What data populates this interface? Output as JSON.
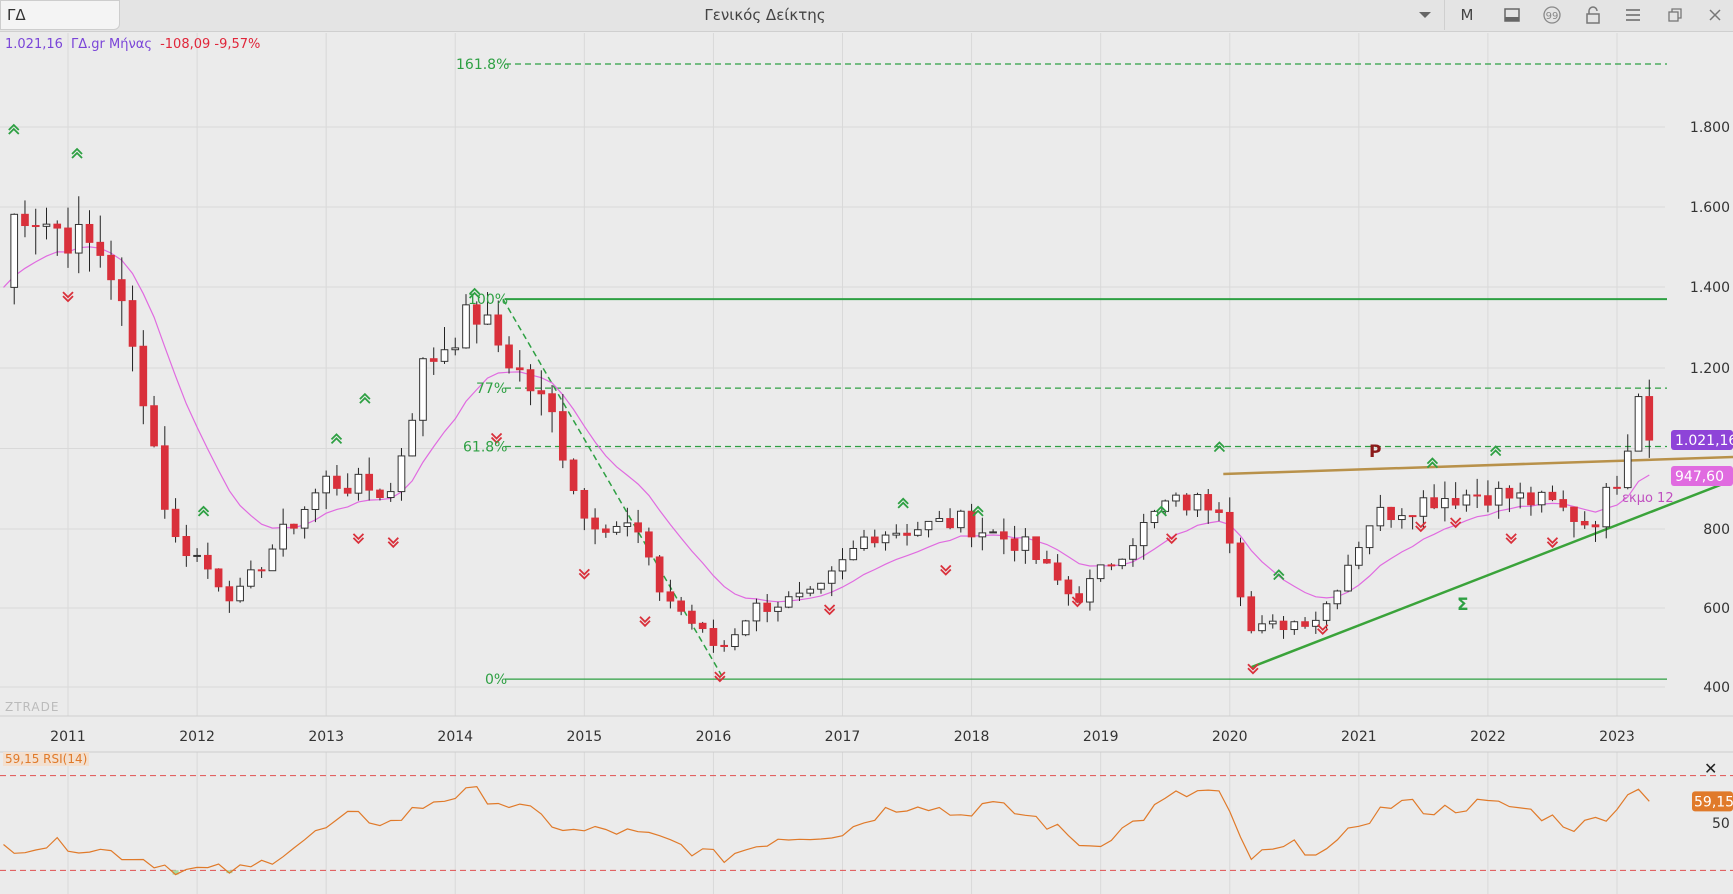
{
  "window": {
    "symbol": "ΓΔ",
    "title": "Γενικός Δείκτης",
    "period_button": "M",
    "icons": [
      "chevron-down-icon",
      "panel-icon",
      "quote-icon",
      "lock-icon",
      "menu-icon",
      "restore-icon",
      "close-icon"
    ]
  },
  "quote": {
    "price": "1.021,16",
    "name": "ΓΔ.gr Μήνας",
    "change": "-108,09",
    "change_pct": "-9,57%"
  },
  "watermark": "ZTRADE",
  "colors": {
    "bull": "#ffffff",
    "bear": "#d9303b",
    "ema": "#e06be0",
    "fib": "#2ea043",
    "resistance": "#b8914a",
    "rsi": "#e07a2a",
    "price_tag": "#8e44d8"
  },
  "price_tags": {
    "last": "1.021,16",
    "ema": "947,60"
  },
  "annotations": {
    "fib_161": "161.8%",
    "fib_100": "100%",
    "fib_77": "77%",
    "fib_618": "61.8%",
    "fib_0": "0%",
    "pattern_p": "P",
    "pattern_sigma": "Σ",
    "ema_label": "εκμο 12"
  },
  "rsi": {
    "label": "59,15 RSI(14)",
    "value_tag": "59,15",
    "level_label": "50"
  },
  "chart_data": {
    "type": "candlestick",
    "title": "",
    "x_range": [
      2010.5,
      2023.75
    ],
    "ylim": [
      400,
      1900
    ],
    "y_ticks": [
      400,
      600,
      800,
      1200,
      1400,
      1600,
      1800
    ],
    "y_tick_labels": [
      "400",
      "600",
      "800",
      "1.200",
      "1.400",
      "1.600",
      "1.800"
    ],
    "x_ticks": [
      "2011",
      "2012",
      "2013",
      "2014",
      "2015",
      "2016",
      "2017",
      "2018",
      "2019",
      "2020",
      "2021",
      "2022",
      "2023"
    ],
    "grid": true,
    "indicators": [
      "EMA 12",
      "RSI(14)"
    ],
    "fib_levels": [
      {
        "label": "161.8%",
        "value": 1950
      },
      {
        "label": "100%",
        "value": 1370
      },
      {
        "label": "77%",
        "value": 1150
      },
      {
        "label": "61.8%",
        "value": 1005
      },
      {
        "label": "0%",
        "value": 420
      }
    ],
    "anchors": [
      [
        2010.5,
        1400
      ],
      [
        2010.6,
        1610
      ],
      [
        2011.0,
        1530
      ],
      [
        2011.3,
        1480
      ],
      [
        2011.6,
        1120
      ],
      [
        2011.8,
        780
      ],
      [
        2012.0,
        730
      ],
      [
        2012.3,
        620
      ],
      [
        2012.6,
        760
      ],
      [
        2013.0,
        920
      ],
      [
        2013.5,
        890
      ],
      [
        2013.75,
        1200
      ],
      [
        2014.15,
        1340
      ],
      [
        2014.4,
        1230
      ],
      [
        2014.75,
        1080
      ],
      [
        2015.0,
        830
      ],
      [
        2015.4,
        800
      ],
      [
        2015.55,
        660
      ],
      [
        2016.05,
        490
      ],
      [
        2016.3,
        600
      ],
      [
        2016.8,
        630
      ],
      [
        2017.2,
        790
      ],
      [
        2017.5,
        800
      ],
      [
        2017.9,
        820
      ],
      [
        2018.4,
        760
      ],
      [
        2018.8,
        620
      ],
      [
        2019.2,
        760
      ],
      [
        2019.5,
        860
      ],
      [
        2019.95,
        870
      ],
      [
        2020.15,
        540
      ],
      [
        2020.7,
        580
      ],
      [
        2021.1,
        830
      ],
      [
        2021.6,
        880
      ],
      [
        2022.0,
        890
      ],
      [
        2022.5,
        860
      ],
      [
        2022.8,
        810
      ],
      [
        2023.0,
        930
      ],
      [
        2023.15,
        1100
      ],
      [
        2023.25,
        1021
      ]
    ],
    "rsi_anchors": [
      [
        2010.5,
        40
      ],
      [
        2011.0,
        41
      ],
      [
        2011.5,
        36
      ],
      [
        2011.9,
        30
      ],
      [
        2012.4,
        30
      ],
      [
        2012.8,
        42
      ],
      [
        2013.2,
        53
      ],
      [
        2013.5,
        50
      ],
      [
        2013.85,
        60
      ],
      [
        2014.15,
        63
      ],
      [
        2014.6,
        54
      ],
      [
        2014.9,
        46
      ],
      [
        2015.2,
        47
      ],
      [
        2015.6,
        43
      ],
      [
        2016.05,
        35
      ],
      [
        2016.5,
        44
      ],
      [
        2017.0,
        46
      ],
      [
        2017.3,
        55
      ],
      [
        2017.6,
        59
      ],
      [
        2017.9,
        53
      ],
      [
        2018.1,
        58
      ],
      [
        2018.5,
        52
      ],
      [
        2018.9,
        40
      ],
      [
        2019.2,
        48
      ],
      [
        2019.55,
        61
      ],
      [
        2019.9,
        64
      ],
      [
        2020.15,
        35
      ],
      [
        2020.5,
        40
      ],
      [
        2020.8,
        38
      ],
      [
        2021.0,
        50
      ],
      [
        2021.3,
        59
      ],
      [
        2021.6,
        55
      ],
      [
        2021.9,
        58
      ],
      [
        2022.2,
        57
      ],
      [
        2022.5,
        52
      ],
      [
        2022.7,
        48
      ],
      [
        2022.9,
        53
      ],
      [
        2023.1,
        62
      ],
      [
        2023.15,
        68
      ],
      [
        2023.25,
        59
      ]
    ],
    "rsi_ylim": [
      20,
      80
    ]
  }
}
